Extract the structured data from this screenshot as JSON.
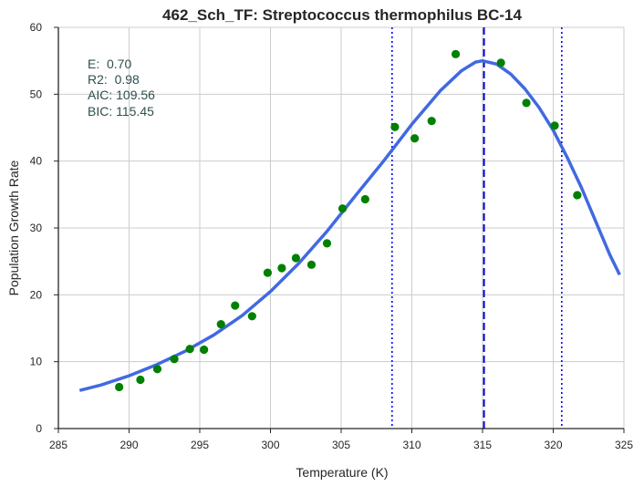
{
  "chart_data": {
    "type": "scatter",
    "title": "462_Sch_TF: Streptococcus thermophilus BC-14",
    "xlabel": "Temperature (K)",
    "ylabel": "Population Growth Rate",
    "xlim": [
      285,
      325
    ],
    "ylim": [
      0,
      60
    ],
    "xticks": [
      285,
      290,
      295,
      300,
      305,
      310,
      315,
      320,
      325
    ],
    "yticks": [
      0,
      10,
      20,
      30,
      40,
      50,
      60
    ],
    "grid": true,
    "colors": {
      "points": "#008000",
      "fit": "#4169e1",
      "peak_line": "#0000cd",
      "bound_lines": "#0000ff",
      "stats": "#2f4f4f"
    },
    "stats": [
      "E:  0.70",
      "R2:  0.98",
      "AIC: 109.56",
      "BIC: 115.45"
    ],
    "points": [
      {
        "x": 289.3,
        "y": 6.2
      },
      {
        "x": 290.8,
        "y": 7.3
      },
      {
        "x": 292.0,
        "y": 8.9
      },
      {
        "x": 293.2,
        "y": 10.4
      },
      {
        "x": 294.3,
        "y": 11.9
      },
      {
        "x": 295.3,
        "y": 11.8
      },
      {
        "x": 296.5,
        "y": 15.6
      },
      {
        "x": 297.5,
        "y": 18.4
      },
      {
        "x": 298.7,
        "y": 16.8
      },
      {
        "x": 299.8,
        "y": 23.3
      },
      {
        "x": 300.8,
        "y": 24.0
      },
      {
        "x": 301.8,
        "y": 25.5
      },
      {
        "x": 302.9,
        "y": 24.5
      },
      {
        "x": 304.0,
        "y": 27.7
      },
      {
        "x": 305.1,
        "y": 32.9
      },
      {
        "x": 306.7,
        "y": 34.3
      },
      {
        "x": 308.8,
        "y": 45.1
      },
      {
        "x": 310.2,
        "y": 43.4
      },
      {
        "x": 311.4,
        "y": 46.0
      },
      {
        "x": 313.1,
        "y": 56.0
      },
      {
        "x": 316.3,
        "y": 54.7
      },
      {
        "x": 318.1,
        "y": 48.7
      },
      {
        "x": 320.1,
        "y": 45.3
      },
      {
        "x": 321.7,
        "y": 34.9
      }
    ],
    "fit_curve": [
      {
        "x": 286.5,
        "y": 5.7
      },
      {
        "x": 288.0,
        "y": 6.5
      },
      {
        "x": 290.0,
        "y": 7.9
      },
      {
        "x": 292.0,
        "y": 9.6
      },
      {
        "x": 294.0,
        "y": 11.6
      },
      {
        "x": 296.0,
        "y": 14.0
      },
      {
        "x": 298.0,
        "y": 16.9
      },
      {
        "x": 300.0,
        "y": 20.5
      },
      {
        "x": 302.0,
        "y": 24.7
      },
      {
        "x": 304.0,
        "y": 29.5
      },
      {
        "x": 306.0,
        "y": 34.8
      },
      {
        "x": 308.0,
        "y": 40.0
      },
      {
        "x": 310.0,
        "y": 45.5
      },
      {
        "x": 312.0,
        "y": 50.5
      },
      {
        "x": 313.5,
        "y": 53.5
      },
      {
        "x": 314.5,
        "y": 54.8
      },
      {
        "x": 315.0,
        "y": 55.0
      },
      {
        "x": 316.0,
        "y": 54.5
      },
      {
        "x": 317.0,
        "y": 53.0
      },
      {
        "x": 318.0,
        "y": 50.8
      },
      {
        "x": 319.0,
        "y": 48.0
      },
      {
        "x": 320.0,
        "y": 44.6
      },
      {
        "x": 321.0,
        "y": 40.5
      },
      {
        "x": 322.0,
        "y": 36.0
      },
      {
        "x": 323.0,
        "y": 31.0
      },
      {
        "x": 324.0,
        "y": 26.0
      },
      {
        "x": 324.7,
        "y": 23.0
      }
    ],
    "peak_line_x": 315.1,
    "bound_lines_x": [
      308.6,
      320.6
    ]
  }
}
